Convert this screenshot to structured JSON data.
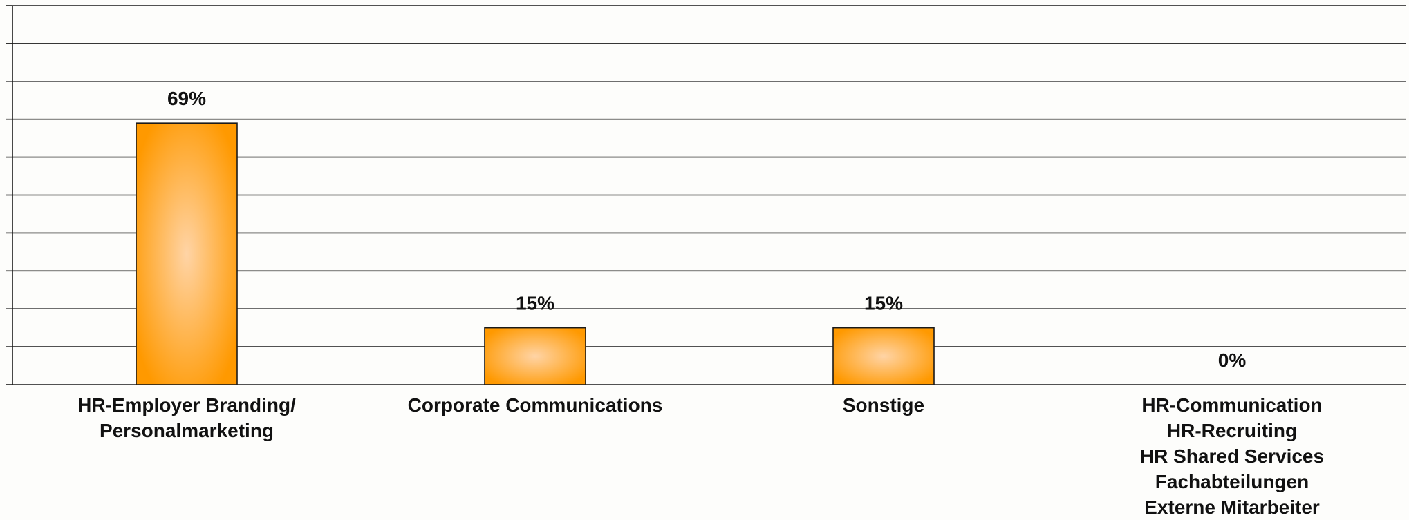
{
  "chart_data": {
    "type": "bar",
    "categories": [
      [
        "HR-Employer Branding/",
        "Personalmarketing"
      ],
      [
        "Corporate Communications"
      ],
      [
        "Sonstige"
      ],
      [
        "HR-Communication",
        "HR-Recruiting",
        "HR Shared Services",
        "Fachabteilungen",
        "Externe Mitarbeiter"
      ]
    ],
    "values": [
      69,
      15,
      15,
      0
    ],
    "data_labels": [
      "69%",
      "15%",
      "15%",
      "0%"
    ],
    "title": "",
    "xlabel": "",
    "ylabel": "",
    "ylim": [
      0,
      100
    ],
    "grid": true,
    "legend": "none",
    "colors": {
      "bar_edge": "#ff9900",
      "bar_center": "#ffd4a6",
      "bar_border": "#1a1a1a",
      "grid": "#1a1a1a"
    }
  }
}
